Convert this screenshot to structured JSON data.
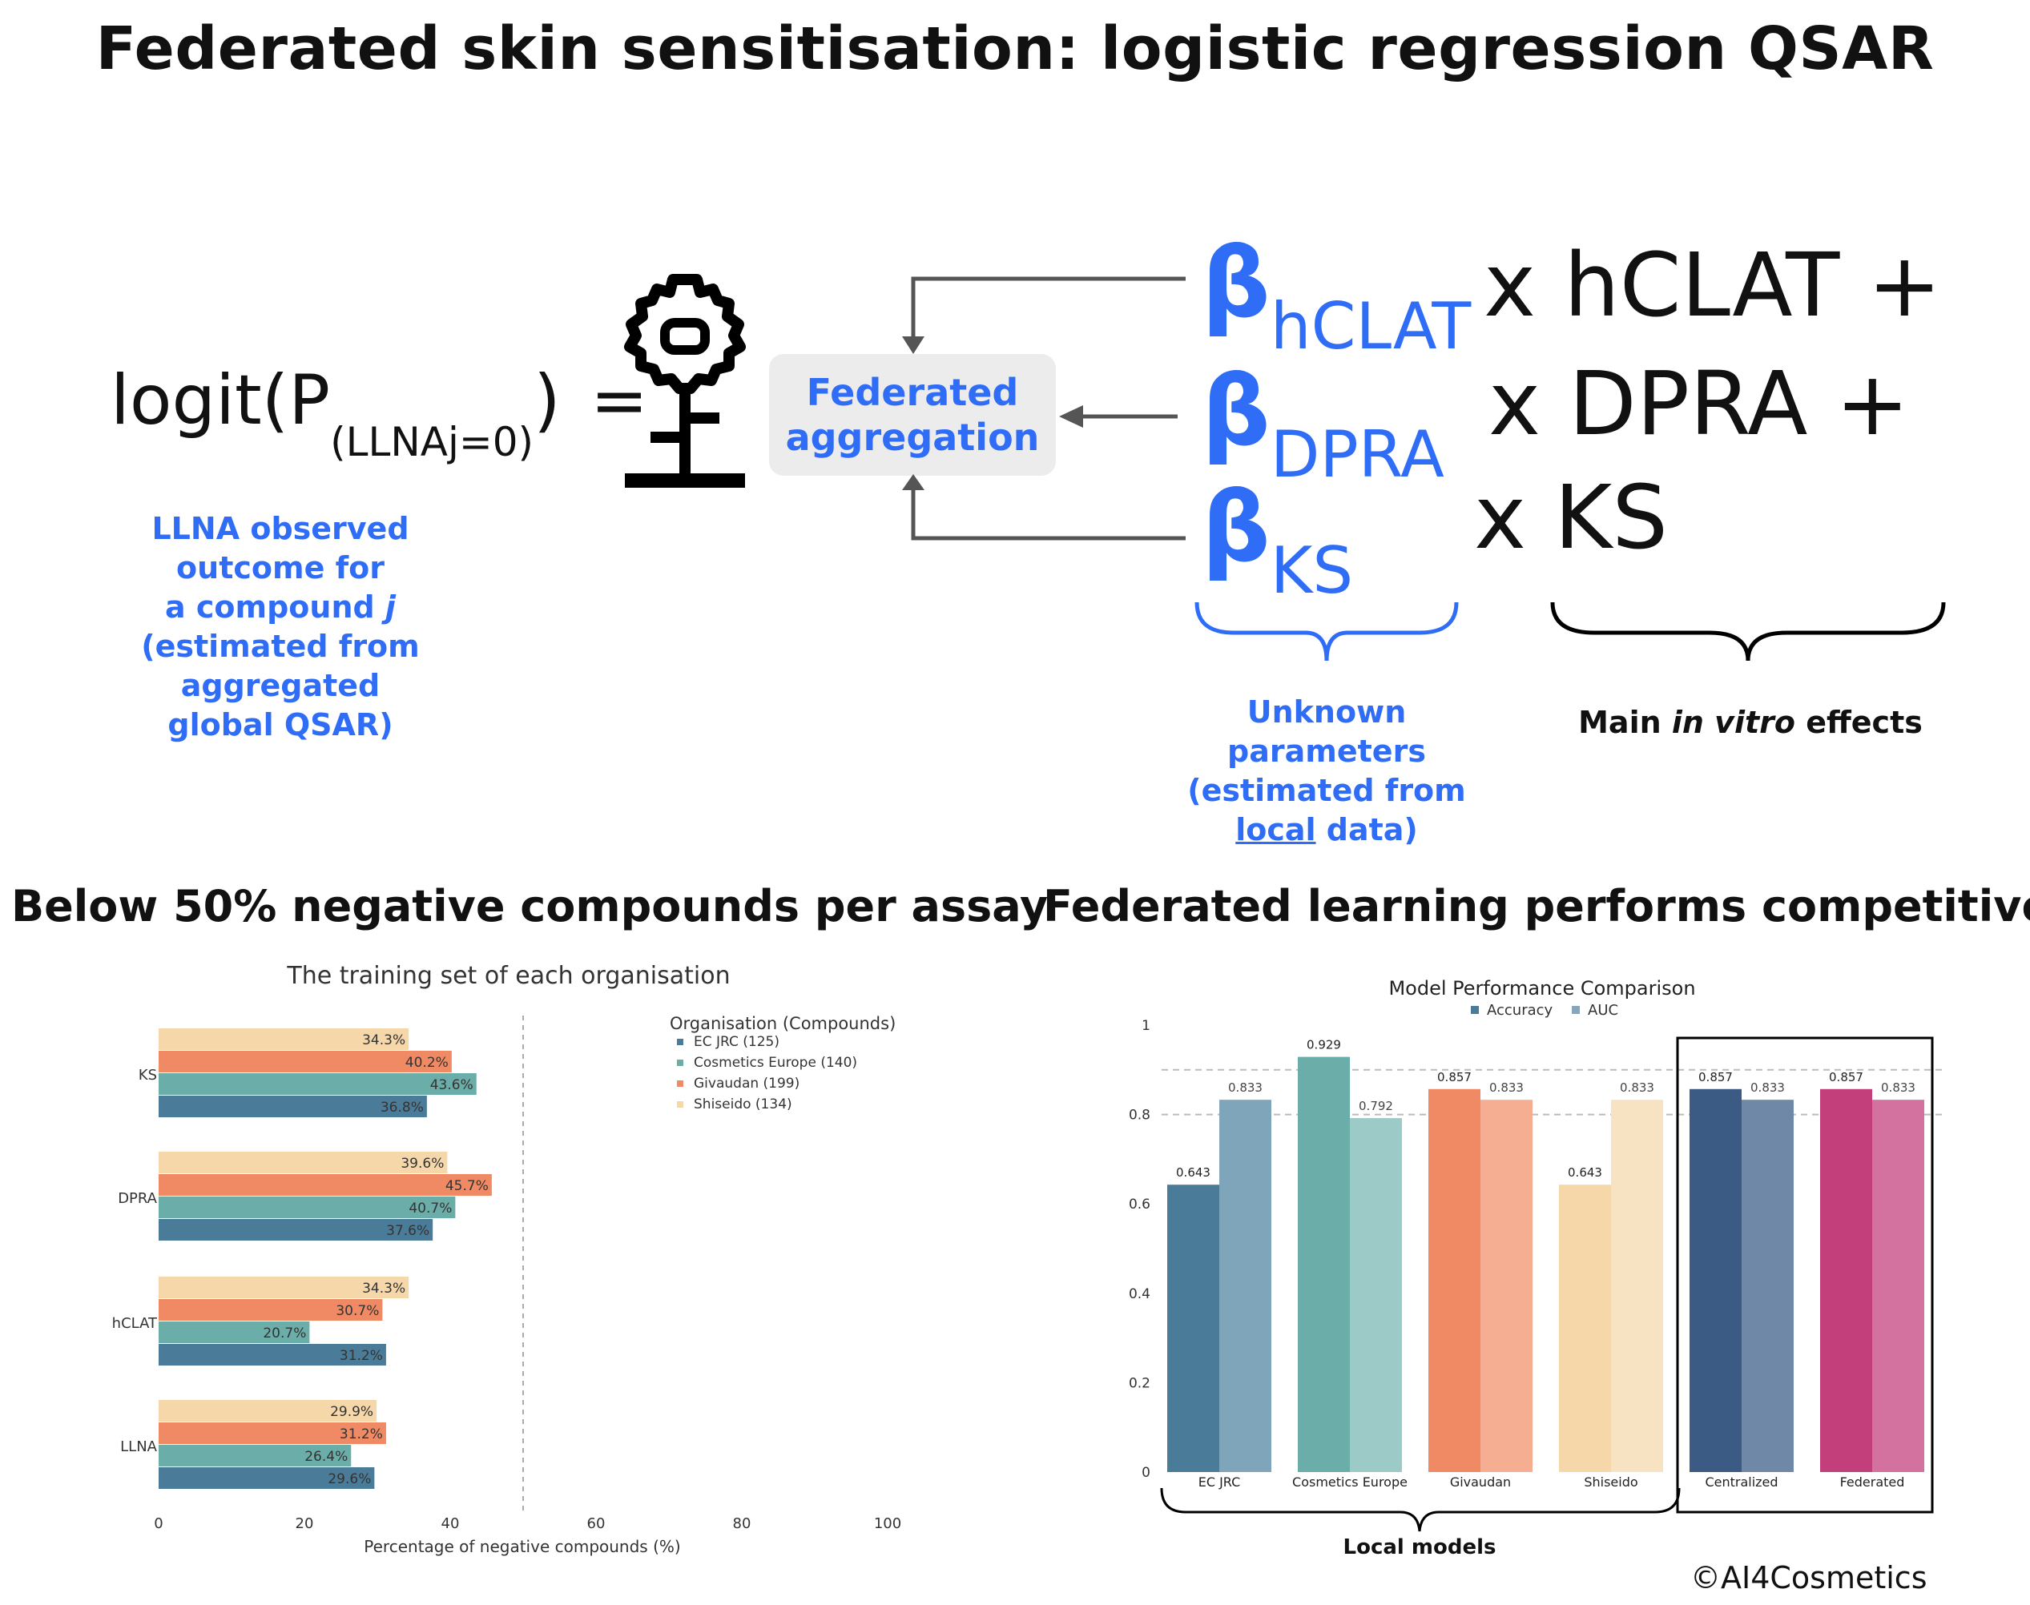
{
  "title": "Federated skin sensitisation: logistic regression QSAR",
  "equation": {
    "lhs_main": "logit(P",
    "lhs_sub": "(LLNAj=0)",
    "lhs_close": ")",
    "equals": "=",
    "lhs_caption_l1": "LLNA observed outcome for",
    "lhs_caption_l2a": "a compound ",
    "lhs_caption_l2b": "j",
    "lhs_caption_l3": "(estimated from aggregated",
    "lhs_caption_l4": "global QSAR)",
    "aggregation_label_l1": "Federated",
    "aggregation_label_l2": "aggregation",
    "beta": "β",
    "terms": [
      {
        "sub": "hCLAT",
        "effect": "x hCLAT +"
      },
      {
        "sub": "DPRA",
        "effect": "x DPRA +"
      },
      {
        "sub": "KS",
        "effect": "x KS"
      }
    ],
    "unknown_l1": "Unknown",
    "unknown_l2": "parameters",
    "unknown_l3": "(estimated from",
    "unknown_l4a": "local",
    "unknown_l4b": " data)",
    "main_effects_a": "Main ",
    "main_effects_b": "in vitro",
    "main_effects_c": " effects"
  },
  "left_heading": "Below 50% negative compounds per assay",
  "right_heading": "Federated learning performs competitively",
  "copyright": "©AI4Cosmetics",
  "colors": {
    "blue": "#2f6df6",
    "ec_jrc": "#4a7c99",
    "cosmetics_europe": "#6aada9",
    "givaudan": "#f08a65",
    "shiseido": "#f6d7a9",
    "centralized": "#3b5b84",
    "federated": "#c23f7b"
  },
  "chart_data": [
    {
      "type": "bar",
      "orientation": "horizontal",
      "title": "The training set of each organisation",
      "xlabel": "Percentage of negative compounds (%)",
      "xlim": [
        0,
        100
      ],
      "xticks": [
        0,
        20,
        40,
        60,
        80,
        100
      ],
      "reference_line": 50,
      "categories": [
        "KS",
        "DPRA",
        "hCLAT",
        "LLNA"
      ],
      "legend_title": "Organisation (Compounds)",
      "legend_position": "top-right",
      "series": [
        {
          "name": "EC JRC (125)",
          "values": [
            36.8,
            37.6,
            31.2,
            29.6
          ],
          "labels": [
            "36.8%",
            "37.6%",
            "31.2%",
            "29.6%"
          ]
        },
        {
          "name": "Cosmetics Europe (140)",
          "values": [
            43.6,
            40.7,
            20.7,
            26.4
          ],
          "labels": [
            "43.6%",
            "40.7%",
            "20.7%",
            "26.4%"
          ]
        },
        {
          "name": "Givaudan (199)",
          "values": [
            40.2,
            45.7,
            30.7,
            31.2
          ],
          "labels": [
            "40.2%",
            "45.7%",
            "30.7%",
            "31.2%"
          ]
        },
        {
          "name": "Shiseido (134)",
          "values": [
            34.3,
            39.6,
            34.3,
            29.9
          ],
          "labels": [
            "34.3%",
            "39.6%",
            "34.3%",
            "29.9%"
          ]
        }
      ]
    },
    {
      "type": "bar",
      "title": "Model Performance Comparison",
      "ylim": [
        0,
        1
      ],
      "yticks": [
        "0",
        "0.2",
        "0.4",
        "0.6",
        "0.8",
        "1"
      ],
      "reference_lines": [
        0.8,
        0.9
      ],
      "legend": [
        "Accuracy",
        "AUC"
      ],
      "legend_position": "top-center",
      "categories": [
        "EC JRC",
        "Cosmetics Europe",
        "Givaudan",
        "Shiseido",
        "Centralized",
        "Federated"
      ],
      "series": [
        {
          "name": "Accuracy",
          "values": [
            0.643,
            0.929,
            0.857,
            0.643,
            0.857,
            0.857
          ],
          "labels": [
            "0.643",
            "0.929",
            "0.857",
            "0.643",
            "0.857",
            "0.857"
          ]
        },
        {
          "name": "AUC",
          "values": [
            0.833,
            0.792,
            0.833,
            0.833,
            0.833,
            0.833
          ],
          "labels": [
            "0.833",
            "0.792",
            "0.833",
            "0.833",
            "0.833",
            "0.833"
          ]
        }
      ],
      "bracket_label": "Local models"
    }
  ]
}
